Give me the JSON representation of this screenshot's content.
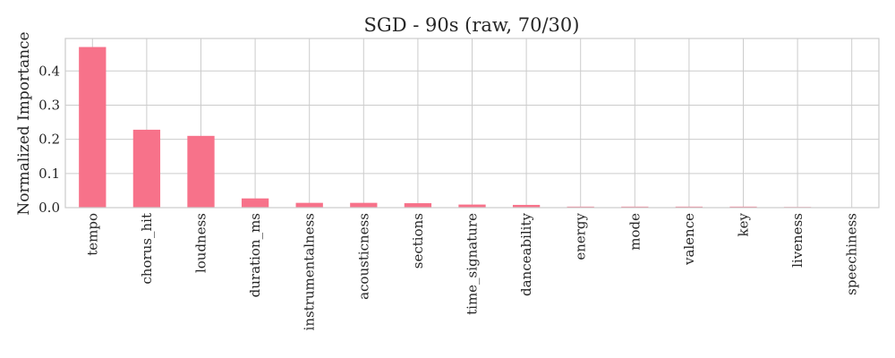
{
  "chart_data": {
    "type": "bar",
    "title": "SGD - 90s (raw, 70/30)",
    "xlabel": "",
    "ylabel": "Normalized Importance",
    "categories": [
      "tempo",
      "chorus_hit",
      "loudness",
      "duration_ms",
      "instrumentalness",
      "acousticness",
      "sections",
      "time_signature",
      "danceability",
      "energy",
      "mode",
      "valence",
      "key",
      "liveness",
      "speechiness"
    ],
    "values": [
      0.47,
      0.228,
      0.21,
      0.027,
      0.014,
      0.014,
      0.013,
      0.009,
      0.008,
      0.003,
      0.003,
      0.003,
      0.003,
      0.002,
      0.001
    ],
    "ylim": [
      0,
      0.495
    ],
    "yticks": [
      "0.0",
      "0.1",
      "0.2",
      "0.3",
      "0.4"
    ],
    "grid": true,
    "bar_color": "#f7728a"
  }
}
